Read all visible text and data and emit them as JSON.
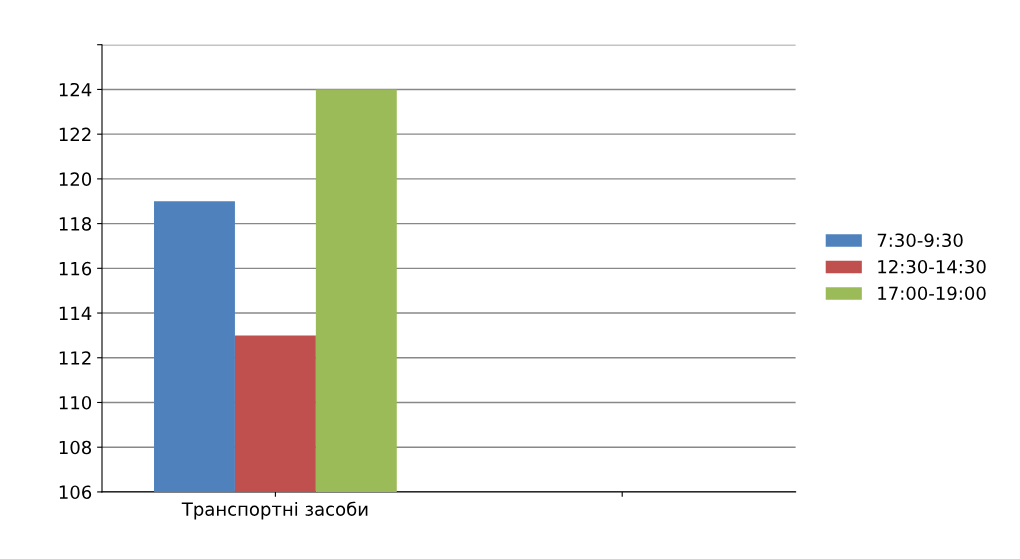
{
  "chart_data": {
    "type": "bar",
    "categories": [
      "Транспортні засоби",
      null
    ],
    "series": [
      {
        "name": "7:30-9:30",
        "color": "#4f81bd",
        "values": [
          119,
          null
        ]
      },
      {
        "name": "12:30-14:30",
        "color": "#c0504d",
        "values": [
          113,
          null
        ]
      },
      {
        "name": "17:00-19:00",
        "color": "#9bbb59",
        "values": [
          124,
          null
        ]
      }
    ],
    "ylim": [
      106,
      126
    ],
    "yticks": [
      106,
      108,
      110,
      112,
      114,
      116,
      118,
      120,
      122,
      124,
      {
        "value": 126,
        "label": null
      }
    ],
    "grid": "y",
    "legend": "right"
  }
}
